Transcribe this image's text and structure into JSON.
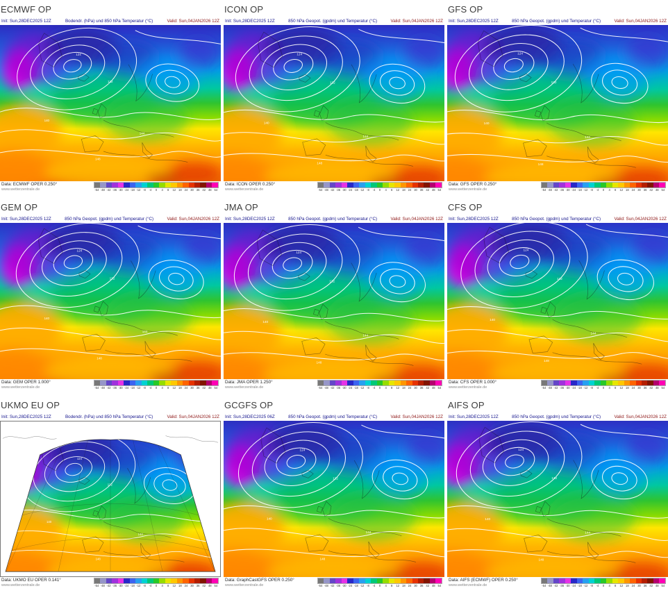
{
  "panels": [
    {
      "title": "ECMWF OP",
      "init": "Init: Sun,28DEC2025 12Z",
      "desc": "Bodendr. (hPa) und 850 hPa Temperatur (°C)",
      "valid": "Valid: Sun,04JAN2026 12Z",
      "data_line": "Data: ECMWF OPER 0.250°",
      "site": "www.wetterzentrale.de",
      "variant": "standard"
    },
    {
      "title": "ICON OP",
      "init": "Init: Sun,28DEC2025 12Z",
      "desc": "850 hPa Geopot. (gpdm) und Temperatur (°C)",
      "valid": "Valid: Sun,04JAN2026 12Z",
      "data_line": "Data: ICON OPER 0.250°",
      "site": "www.wetterzentrale.de",
      "variant": "standard"
    },
    {
      "title": "GFS OP",
      "init": "Init: Sun,28DEC2025 12Z",
      "desc": "850 hPa Geopot. (gpdm) und Temperatur (°C)",
      "valid": "Valid: Sun,04JAN2026 12Z",
      "data_line": "Data: GFS OPER 0.250°",
      "site": "www.wetterzentrale.de",
      "variant": "standard"
    },
    {
      "title": "GEM OP",
      "init": "Init: Sun,28DEC2025 12Z",
      "desc": "850 hPa Geopot. (gpdm) und Temperatur (°C)",
      "valid": "Valid: Sun,04JAN2026 12Z",
      "data_line": "Data: GEM OPER 1.000°",
      "site": "www.wetterzentrale.de",
      "variant": "standard"
    },
    {
      "title": "JMA OP",
      "init": "Init: Sun,28DEC2025 12Z",
      "desc": "850 hPa Geopot. (gpdm) und Temperatur (°C)",
      "valid": "Valid: Sun,04JAN2026 12Z",
      "data_line": "Data: JMA OPER 1.250°",
      "site": "www.wetterzentrale.de",
      "variant": "standard"
    },
    {
      "title": "CFS OP",
      "init": "Init: Sun,28DEC2025 12Z",
      "desc": "850 hPa Geopot. (gpdm) und Temperatur (°C)",
      "valid": "Valid: Sun,04JAN2026 12Z",
      "data_line": "Data: CFS OPER 1.000°",
      "site": "www.wetterzentrale.de",
      "variant": "standard"
    },
    {
      "title": "UKMO EU OP",
      "init": "Init: Sun,28DEC2025 12Z",
      "desc": "Bodendr. (hPa) und 850 hPa Temperatur (°C)",
      "valid": "Valid: Sun,04JAN2026 12Z",
      "data_line": "Data: UKMO EU OPER 0.141°",
      "site": "www.wetterzentrale.de",
      "variant": "ukmo"
    },
    {
      "title": "GCGFS OP",
      "init": "Init: Sun,28DEC2025 06Z",
      "desc": "850 hPa Geopot. (gpdm) und Temperatur (°C)",
      "valid": "Valid: Sun,04JAN2026 12Z",
      "data_line": "Data: GraphCastGFS OPER 0.250°",
      "site": "www.wetterzentrale.de",
      "variant": "standard"
    },
    {
      "title": "AIFS OP",
      "init": "Init: Sun,28DEC2025 12Z",
      "desc": "850 hPa Geopot. (gpdm) und Temperatur (°C)",
      "valid": "Valid: Sun,04JAN2026 12Z",
      "data_line": "Data: AIFS (ECMWF) OPER 0.250°",
      "site": "www.wetterzentrale.de",
      "variant": "standard"
    }
  ],
  "legend": {
    "labels": [
      "-54",
      "-48",
      "-42",
      "-36",
      "-30",
      "-24",
      "-18",
      "-12",
      "-8",
      "-4",
      "0",
      "4",
      "8",
      "12",
      "18",
      "24",
      "30",
      "36",
      "42",
      "48",
      "54"
    ],
    "colors": [
      "#787878",
      "#9696c8",
      "#6446c8",
      "#a032dc",
      "#e632e6",
      "#2828c8",
      "#3c64f0",
      "#28a0f0",
      "#00d2d2",
      "#00c878",
      "#28c828",
      "#96dc00",
      "#e6e600",
      "#ffc800",
      "#ff9600",
      "#ff6400",
      "#e63200",
      "#b41e00",
      "#821400",
      "#b4006e",
      "#ff00b4"
    ]
  },
  "map_art": {
    "contour_labels": [
      "124",
      "132",
      "140",
      "144",
      "148"
    ],
    "cold_extreme_color": "#e800e8",
    "warm_extreme_color": "#dc5000"
  }
}
